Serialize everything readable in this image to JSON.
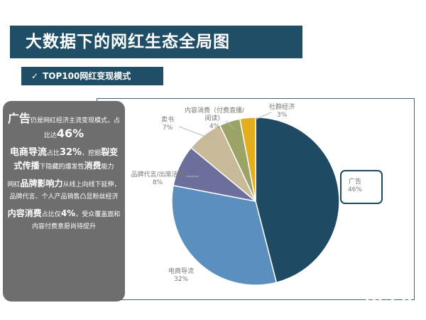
{
  "title": "大数据下的网红生态全局图",
  "subtitle_check": "✓",
  "subtitle": "TOP100网红变现模式",
  "side_text": {
    "p1": {
      "a": "广告",
      "b": "仍是网红经济主流变现模式，占比达",
      "c": "46%"
    },
    "p2": {
      "a": "电商导流",
      "b": "占比",
      "c": "32%",
      "d": "，挖掘",
      "e": "裂变式传播",
      "f": "下隐藏的爆发性",
      "g": "消费",
      "h": "能力"
    },
    "p3": {
      "a": "网红",
      "b": "品牌影响力",
      "c": "从线上向线下延伸，品牌代言、个人产品销售凸显粉丝经济"
    },
    "p4": {
      "a": "内容消费",
      "b": "占比仅",
      "c": "4%",
      "d": "，受众覆盖面和内容付费意愿尚待提升"
    }
  },
  "watermark": "USER",
  "chart_data": {
    "type": "pie",
    "series": [
      {
        "label": "广告",
        "value": 46,
        "value_label": "46%",
        "color": "#1e4b63"
      },
      {
        "label": "电商导流",
        "value": 32,
        "value_label": "32%",
        "color": "#5b8fbd"
      },
      {
        "label": "品牌代言/出席活动",
        "value": 8,
        "value_label": "8%",
        "color": "#6c6f9c"
      },
      {
        "label": "卖书",
        "value": 7,
        "value_label": "7%",
        "color": "#c8ba98"
      },
      {
        "label": "内容消费（付费直播/阅读）",
        "value": 4,
        "value_label": "4%",
        "color": "#9ba366"
      },
      {
        "label": "社群经济",
        "value": 3,
        "value_label": "3%",
        "color": "#e3ad1d"
      }
    ],
    "start": "12 o'clock",
    "direction": "clockwise",
    "highlighted": "广告"
  }
}
